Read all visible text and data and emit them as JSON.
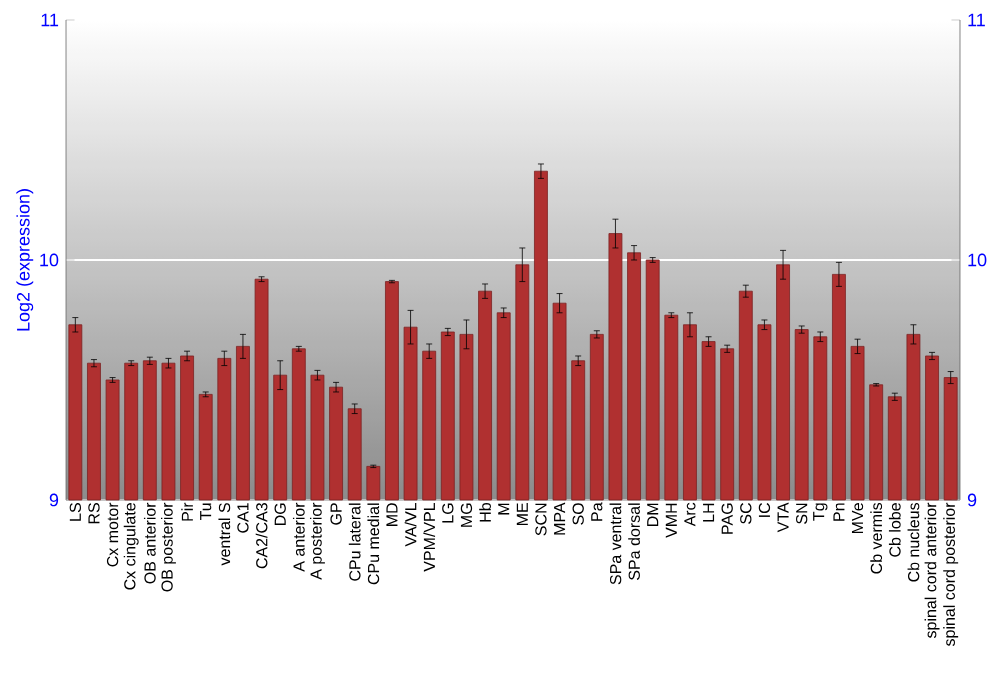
{
  "chart_data": {
    "type": "bar",
    "ylabel": "Log2 (expression)",
    "categories": [
      "LS",
      "RS",
      "Cx motor",
      "Cx cingulate",
      "OB anterior",
      "OB posterior",
      "Pir",
      "Tu",
      "ventral S",
      "CA1",
      "CA2/CA3",
      "DG",
      "A anterior",
      "A posterior",
      "GP",
      "CPu lateral",
      "CPu medial",
      "MD",
      "VA/VL",
      "VPM/VPL",
      "LG",
      "MG",
      "Hb",
      "M",
      "ME",
      "SCN",
      "MPA",
      "SO",
      "Pa",
      "SPa ventral",
      "SPa dorsal",
      "DM",
      "VMH",
      "Arc",
      "LH",
      "PAG",
      "SC",
      "IC",
      "VTA",
      "SN",
      "Tg",
      "Pn",
      "MVe",
      "Cb vermis",
      "Cb lobe",
      "Cb nucleus",
      "spinal cord anterior",
      "spinal cord posterior"
    ],
    "values": [
      9.73,
      9.57,
      9.5,
      9.57,
      9.58,
      9.57,
      9.6,
      9.44,
      9.59,
      9.64,
      9.92,
      9.52,
      9.63,
      9.52,
      9.47,
      9.38,
      9.14,
      9.91,
      9.72,
      9.62,
      9.7,
      9.69,
      9.87,
      9.78,
      9.98,
      10.37,
      9.82,
      9.58,
      9.69,
      10.11,
      10.03,
      10.0,
      9.77,
      9.73,
      9.66,
      9.63,
      9.87,
      9.73,
      9.98,
      9.71,
      9.68,
      9.94,
      9.64,
      9.48,
      9.43,
      9.69,
      9.6,
      9.51
    ],
    "errors": [
      0.03,
      0.015,
      0.01,
      0.01,
      0.015,
      0.02,
      0.02,
      0.01,
      0.03,
      0.05,
      0.01,
      0.06,
      0.01,
      0.02,
      0.02,
      0.02,
      0.005,
      0.005,
      0.07,
      0.03,
      0.015,
      0.06,
      0.03,
      0.02,
      0.07,
      0.03,
      0.04,
      0.02,
      0.015,
      0.06,
      0.03,
      0.01,
      0.01,
      0.05,
      0.02,
      0.015,
      0.025,
      0.02,
      0.06,
      0.015,
      0.02,
      0.05,
      0.03,
      0.005,
      0.015,
      0.04,
      0.015,
      0.025
    ],
    "color": "#b03030",
    "ylim": [
      9,
      11
    ],
    "yticks": [
      9,
      10,
      11
    ],
    "y2lim": [
      9,
      11
    ],
    "y2ticks": [
      9,
      10,
      11
    ],
    "grid": "y"
  }
}
